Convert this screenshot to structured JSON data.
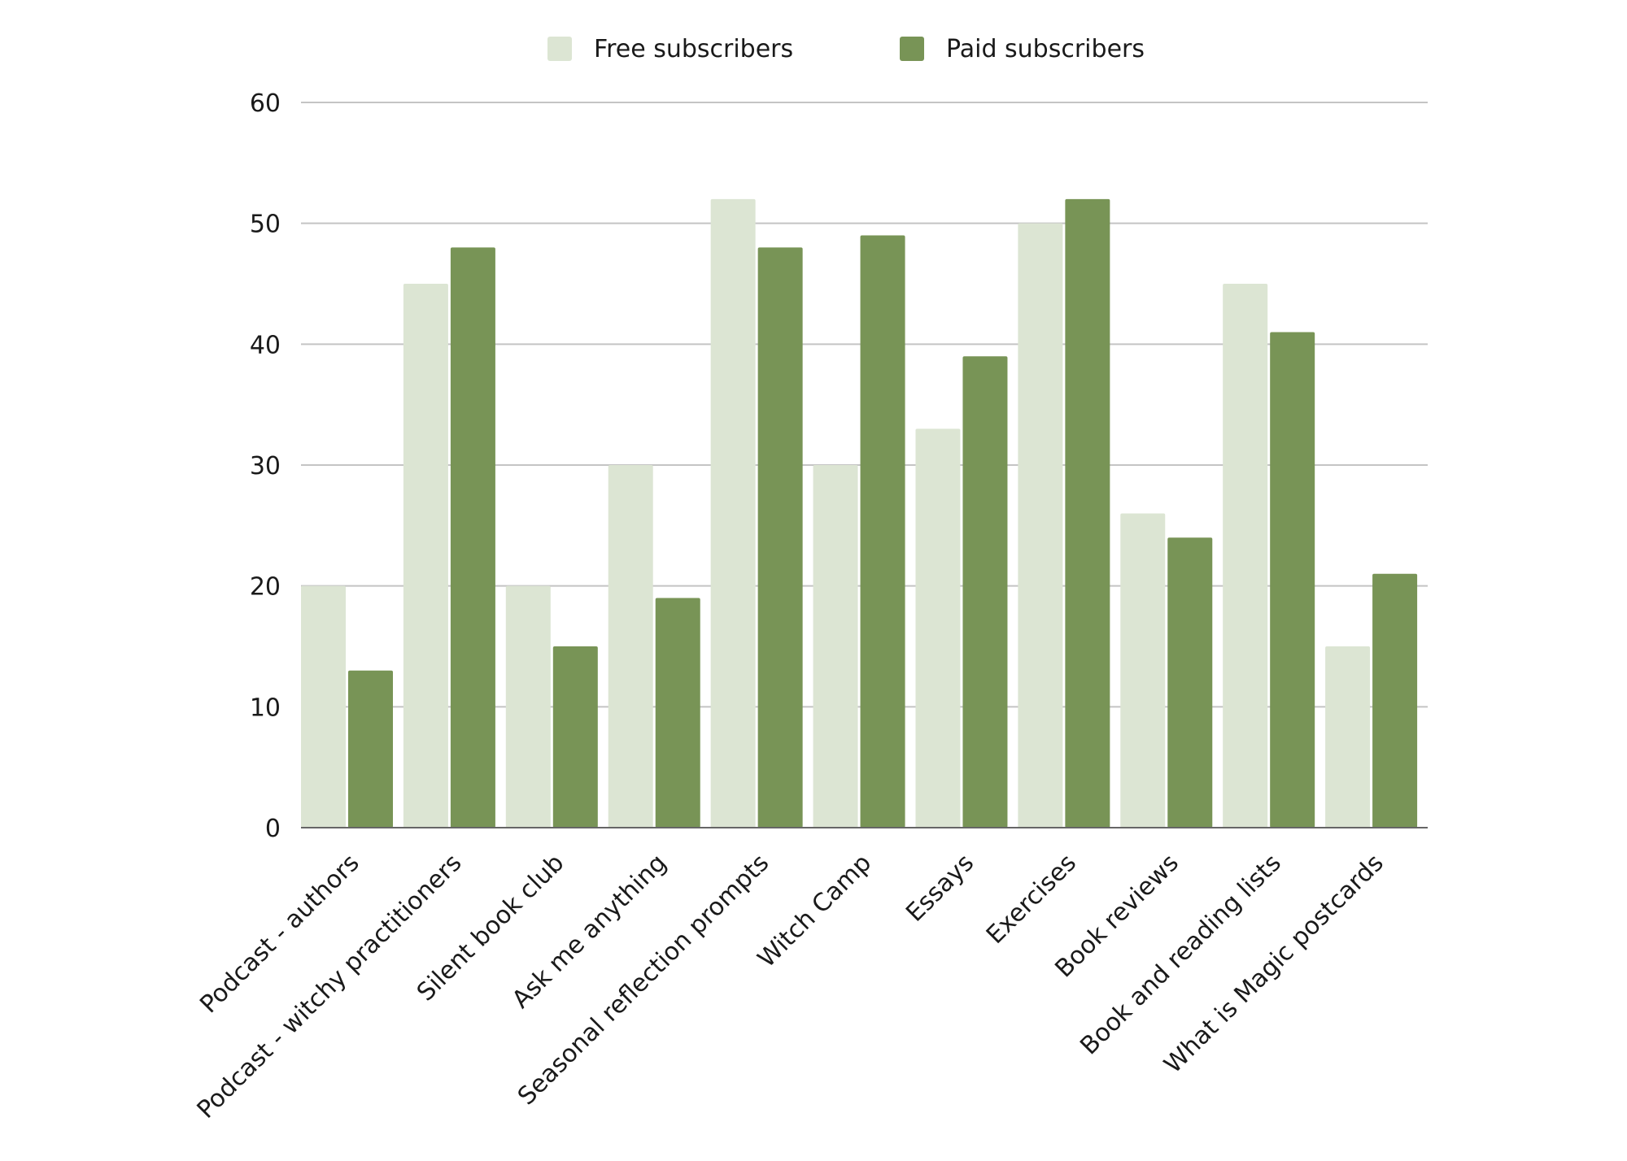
{
  "chart_data": {
    "type": "bar",
    "categories": [
      "Podcast - authors",
      "Podcast - witchy practitioners",
      "Silent book club",
      "Ask me anything",
      "Seasonal reflection prompts",
      "Witch Camp",
      "Essays",
      "Exercises",
      "Book reviews",
      "Book and reading lists",
      "What is Magic postcards"
    ],
    "series": [
      {
        "name": "Free subscribers",
        "color": "#dce5d3",
        "values": [
          20,
          45,
          20,
          30,
          52,
          30,
          33,
          50,
          26,
          45,
          15
        ]
      },
      {
        "name": "Paid subscribers",
        "color": "#789456",
        "values": [
          13,
          48,
          15,
          19,
          48,
          49,
          39,
          52,
          24,
          41,
          21
        ]
      }
    ],
    "yticks": [
      "0",
      "10",
      "20",
      "30",
      "40",
      "50",
      "60"
    ],
    "ylim": [
      0,
      60
    ],
    "grid": true,
    "legend_position": "top-center",
    "title": "",
    "xlabel": "",
    "ylabel": ""
  }
}
